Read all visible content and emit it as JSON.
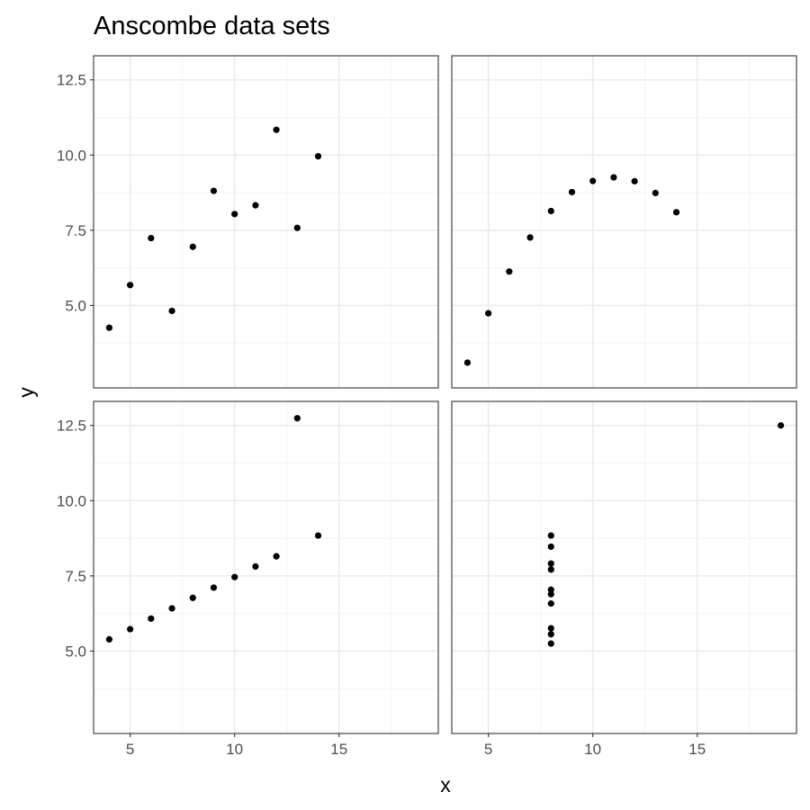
{
  "chart_data": {
    "type": "scatter",
    "title": "Anscombe data sets",
    "xlabel": "x",
    "ylabel": "y",
    "xlim": [
      3.25,
      19.75
    ],
    "ylim": [
      2.261,
      13.3
    ],
    "x_ticks": [
      5,
      10,
      15
    ],
    "x_tick_labels": [
      "5",
      "10",
      "15"
    ],
    "y_ticks": [
      5.0,
      7.5,
      10.0,
      12.5
    ],
    "y_tick_labels": [
      "5.0",
      "7.5",
      "10.0",
      "12.5"
    ],
    "grid": true,
    "facets": "2x2 shared axes",
    "panels": [
      {
        "x": [
          10,
          8,
          13,
          9,
          11,
          14,
          6,
          4,
          12,
          7,
          5
        ],
        "y": [
          8.04,
          6.95,
          7.58,
          8.81,
          8.33,
          9.96,
          7.24,
          4.26,
          10.84,
          4.82,
          5.68
        ]
      },
      {
        "x": [
          10,
          8,
          13,
          9,
          11,
          14,
          6,
          4,
          12,
          7,
          5
        ],
        "y": [
          9.14,
          8.14,
          8.74,
          8.77,
          9.26,
          8.1,
          6.13,
          3.1,
          9.13,
          7.26,
          4.74
        ]
      },
      {
        "x": [
          10,
          8,
          13,
          9,
          11,
          14,
          6,
          4,
          12,
          7,
          5
        ],
        "y": [
          7.46,
          6.77,
          12.74,
          7.11,
          7.81,
          8.84,
          6.08,
          5.39,
          8.15,
          6.42,
          5.73
        ]
      },
      {
        "x": [
          8,
          8,
          8,
          8,
          8,
          8,
          8,
          19,
          8,
          8,
          8
        ],
        "y": [
          6.58,
          5.76,
          7.71,
          8.84,
          8.47,
          7.04,
          5.25,
          12.5,
          5.56,
          7.91,
          6.89
        ]
      }
    ]
  }
}
